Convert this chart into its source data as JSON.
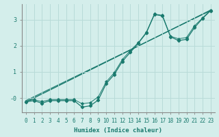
{
  "xlabel": "Humidex (Indice chaleur)",
  "bg_color": "#d4eeeb",
  "grid_color": "#b8dbd8",
  "line_color": "#1a7a6e",
  "spine_color": "#888888",
  "xlim": [
    -0.5,
    23.5
  ],
  "ylim": [
    -0.55,
    3.6
  ],
  "yticks": [
    0,
    1,
    2,
    3
  ],
  "xticks": [
    0,
    1,
    2,
    3,
    4,
    5,
    6,
    7,
    8,
    9,
    10,
    11,
    12,
    13,
    14,
    15,
    16,
    17,
    18,
    19,
    20,
    21,
    22,
    23
  ],
  "line1_x": [
    0,
    1,
    2,
    3,
    4,
    5,
    6,
    7,
    8,
    9,
    10,
    11,
    12,
    13,
    14,
    15,
    16,
    17,
    18,
    19,
    20,
    21,
    22,
    23
  ],
  "line1_y": [
    -0.15,
    -0.1,
    -0.2,
    -0.1,
    -0.1,
    -0.1,
    -0.1,
    -0.35,
    -0.3,
    -0.08,
    0.55,
    0.9,
    1.4,
    1.75,
    2.1,
    2.5,
    3.2,
    3.15,
    2.35,
    2.2,
    2.25,
    2.7,
    3.05,
    3.35
  ],
  "line2_x": [
    0,
    1,
    2,
    3,
    4,
    5,
    6,
    7,
    8,
    9,
    10,
    11,
    12,
    13,
    14,
    15,
    16,
    17,
    18,
    19,
    20,
    21,
    22,
    23
  ],
  "line2_y": [
    -0.12,
    -0.06,
    -0.14,
    -0.06,
    -0.06,
    -0.06,
    -0.06,
    -0.22,
    -0.18,
    0.04,
    0.62,
    0.97,
    1.47,
    1.82,
    2.12,
    2.52,
    3.22,
    3.17,
    2.37,
    2.27,
    2.32,
    2.77,
    3.07,
    3.37
  ],
  "line3_x": [
    0,
    23
  ],
  "line3_y": [
    -0.15,
    3.37
  ],
  "line4_x": [
    0,
    23
  ],
  "line4_y": [
    -0.1,
    3.35
  ],
  "xlabel_fontsize": 6.5,
  "tick_fontsize": 5.5
}
